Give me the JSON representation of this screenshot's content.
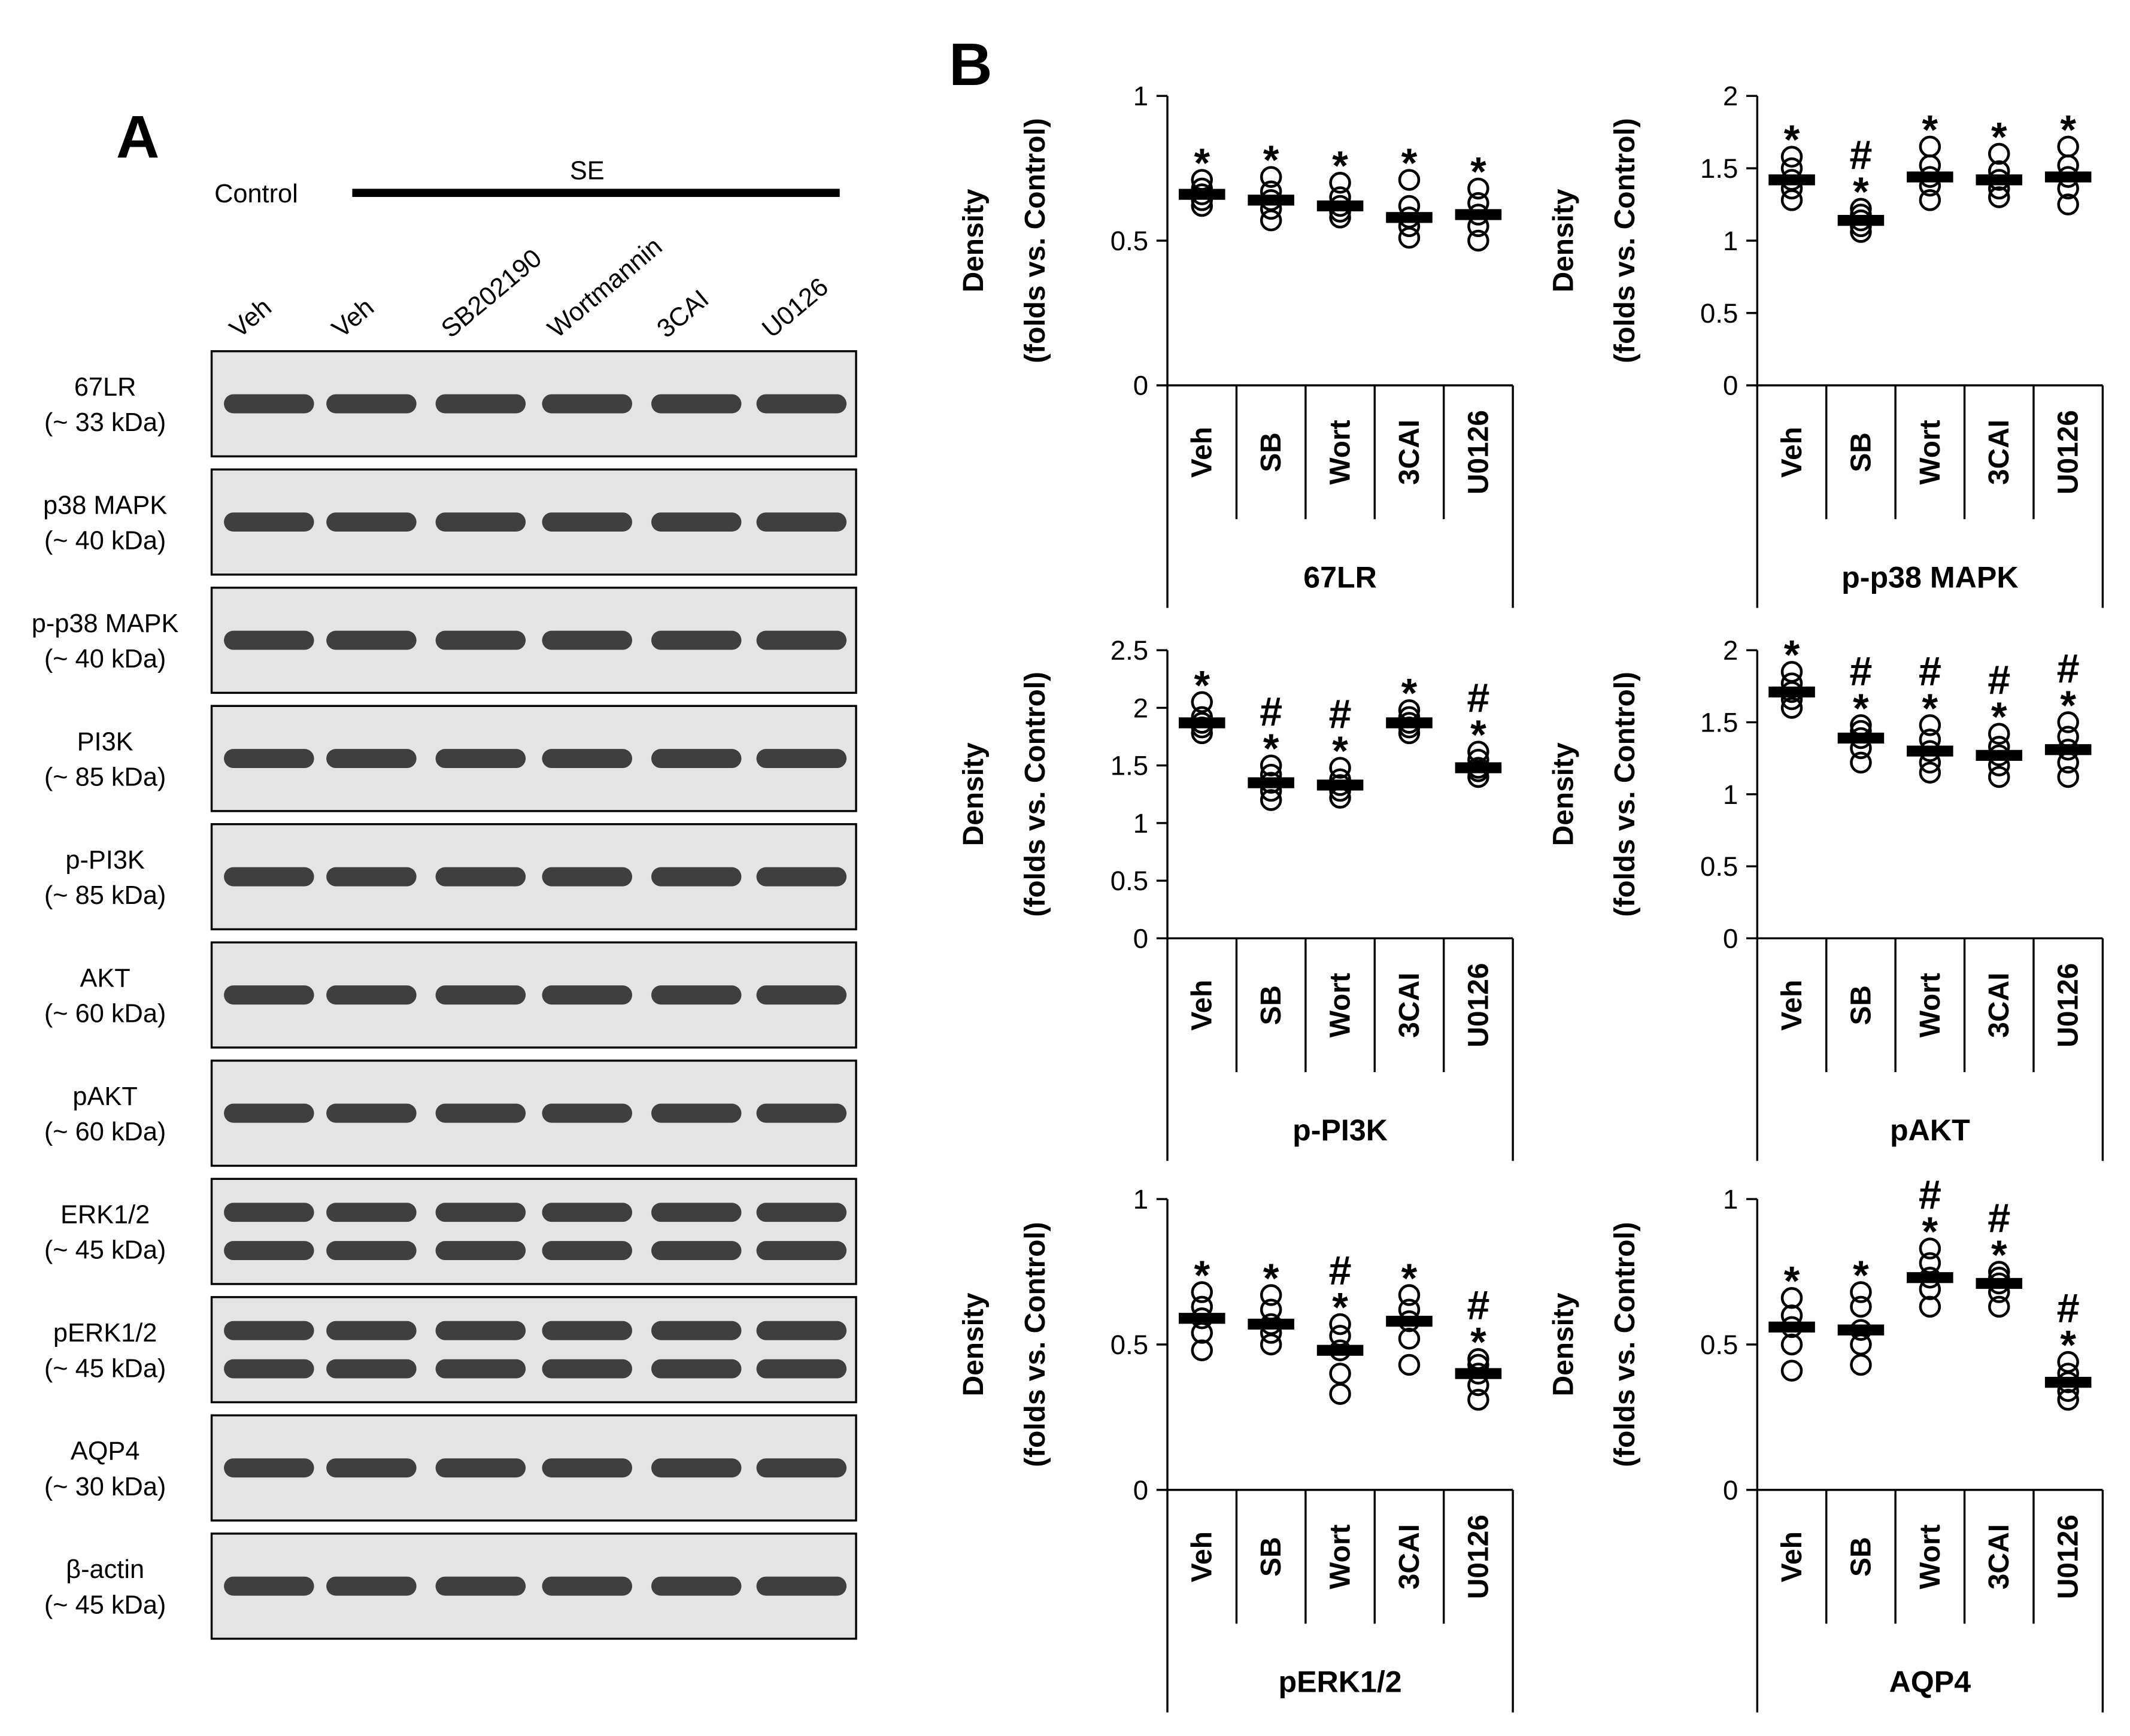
{
  "panel_a": {
    "label": "A",
    "control": "Control",
    "se": "SE",
    "lanes": [
      "Veh",
      "Veh",
      "SB202190",
      "Wortmannin",
      "3CAI",
      "U0126"
    ],
    "rows": [
      {
        "name": "67LR",
        "size": "(~ 33 kDa)"
      },
      {
        "name": "p38 MAPK",
        "size": "(~ 40 kDa)"
      },
      {
        "name": "p-p38 MAPK",
        "size": "(~ 40 kDa)"
      },
      {
        "name": "PI3K",
        "size": "(~ 85 kDa)"
      },
      {
        "name": "p-PI3K",
        "size": "(~ 85 kDa)"
      },
      {
        "name": "AKT",
        "size": "(~ 60 kDa)"
      },
      {
        "name": "pAKT",
        "size": "(~ 60 kDa)"
      },
      {
        "name": "ERK1/2",
        "size": "(~ 45 kDa)"
      },
      {
        "name": "pERK1/2",
        "size": "(~ 45 kDa)"
      },
      {
        "name": "AQP4",
        "size": "(~ 30 kDa)"
      },
      {
        "name": "β-actin",
        "size": "(~ 45 kDa)"
      }
    ]
  },
  "panel_b": {
    "label": "B"
  },
  "chart_data": [
    {
      "type": "dot",
      "title": "67LR",
      "ylabel": "Density",
      "ylabel_sub": "(folds vs. Control)",
      "categories": [
        "Veh",
        "SB",
        "Wort",
        "3CAI",
        "U0126"
      ],
      "values": [
        0.66,
        0.64,
        0.62,
        0.58,
        0.59
      ],
      "points": [
        [
          0.62,
          0.64,
          0.66,
          0.68,
          0.71
        ],
        [
          0.57,
          0.61,
          0.64,
          0.67,
          0.72
        ],
        [
          0.58,
          0.6,
          0.62,
          0.65,
          0.7
        ],
        [
          0.51,
          0.55,
          0.58,
          0.62,
          0.71
        ],
        [
          0.5,
          0.55,
          0.59,
          0.63,
          0.68
        ]
      ],
      "annotations": [
        [
          "*"
        ],
        [
          "*"
        ],
        [
          "*"
        ],
        [
          "*"
        ],
        [
          "*"
        ]
      ],
      "ylim": [
        0,
        1
      ],
      "yticks": [
        0,
        0.5,
        1
      ]
    },
    {
      "type": "dot",
      "title": "p-p38 MAPK",
      "ylabel": "Density",
      "ylabel_sub": "(folds vs. Control)",
      "categories": [
        "Veh",
        "SB",
        "Wort",
        "3CAI",
        "U0126"
      ],
      "values": [
        1.42,
        1.14,
        1.44,
        1.42,
        1.44
      ],
      "points": [
        [
          1.28,
          1.36,
          1.42,
          1.5,
          1.58
        ],
        [
          1.06,
          1.1,
          1.14,
          1.18,
          1.22
        ],
        [
          1.28,
          1.38,
          1.44,
          1.52,
          1.65
        ],
        [
          1.3,
          1.36,
          1.42,
          1.48,
          1.6
        ],
        [
          1.25,
          1.36,
          1.44,
          1.52,
          1.65
        ]
      ],
      "annotations": [
        [
          "*"
        ],
        [
          "#",
          "*"
        ],
        [
          "*"
        ],
        [
          "*"
        ],
        [
          "*"
        ]
      ],
      "ylim": [
        0,
        2
      ],
      "yticks": [
        0,
        0.5,
        1,
        1.5,
        2
      ]
    },
    {
      "type": "dot",
      "title": "p-PI3K",
      "ylabel": "Density",
      "ylabel_sub": "(folds vs. Control)",
      "categories": [
        "Veh",
        "SB",
        "Wort",
        "3CAI",
        "U0126"
      ],
      "values": [
        1.87,
        1.35,
        1.33,
        1.87,
        1.48
      ],
      "points": [
        [
          1.78,
          1.83,
          1.87,
          1.92,
          2.05
        ],
        [
          1.2,
          1.28,
          1.35,
          1.42,
          1.5
        ],
        [
          1.22,
          1.28,
          1.33,
          1.38,
          1.48
        ],
        [
          1.78,
          1.83,
          1.87,
          1.92,
          1.98
        ],
        [
          1.4,
          1.45,
          1.48,
          1.55,
          1.62
        ]
      ],
      "annotations": [
        [
          "*"
        ],
        [
          "#",
          "*"
        ],
        [
          "#",
          "*"
        ],
        [
          "*"
        ],
        [
          "#",
          "*"
        ]
      ],
      "ylim": [
        0,
        2.5
      ],
      "yticks": [
        0,
        0.5,
        1,
        1.5,
        2,
        2.5
      ]
    },
    {
      "type": "dot",
      "title": "pAKT",
      "ylabel": "Density",
      "ylabel_sub": "(folds vs. Control)",
      "categories": [
        "Veh",
        "SB",
        "Wort",
        "3CAI",
        "U0126"
      ],
      "values": [
        1.71,
        1.39,
        1.3,
        1.27,
        1.31
      ],
      "points": [
        [
          1.6,
          1.66,
          1.71,
          1.77,
          1.85
        ],
        [
          1.22,
          1.32,
          1.39,
          1.44,
          1.48
        ],
        [
          1.15,
          1.22,
          1.3,
          1.38,
          1.48
        ],
        [
          1.12,
          1.2,
          1.27,
          1.33,
          1.42
        ],
        [
          1.12,
          1.22,
          1.31,
          1.4,
          1.5
        ]
      ],
      "annotations": [
        [
          "*"
        ],
        [
          "#",
          "*"
        ],
        [
          "#",
          "*"
        ],
        [
          "#",
          "*"
        ],
        [
          "#",
          "*"
        ]
      ],
      "ylim": [
        0,
        2
      ],
      "yticks": [
        0,
        0.5,
        1,
        1.5,
        2
      ]
    },
    {
      "type": "dot",
      "title": "pERK1/2",
      "ylabel": "Density",
      "ylabel_sub": "(folds vs. Control)",
      "categories": [
        "Veh",
        "SB",
        "Wort",
        "3CAI",
        "U0126"
      ],
      "values": [
        0.59,
        0.57,
        0.48,
        0.58,
        0.4
      ],
      "points": [
        [
          0.48,
          0.54,
          0.59,
          0.63,
          0.68
        ],
        [
          0.5,
          0.54,
          0.57,
          0.62,
          0.67
        ],
        [
          0.33,
          0.4,
          0.48,
          0.53,
          0.57
        ],
        [
          0.43,
          0.52,
          0.58,
          0.62,
          0.67
        ],
        [
          0.31,
          0.36,
          0.4,
          0.43,
          0.45
        ]
      ],
      "annotations": [
        [
          "*"
        ],
        [
          "*"
        ],
        [
          "#",
          "*"
        ],
        [
          "*"
        ],
        [
          "#",
          "*"
        ]
      ],
      "ylim": [
        0,
        1
      ],
      "yticks": [
        0,
        0.5,
        1
      ]
    },
    {
      "type": "dot",
      "title": "AQP4",
      "ylabel": "Density",
      "ylabel_sub": "(folds vs. Control)",
      "categories": [
        "Veh",
        "SB",
        "Wort",
        "3CAI",
        "U0126"
      ],
      "values": [
        0.56,
        0.55,
        0.73,
        0.71,
        0.37
      ],
      "points": [
        [
          0.41,
          0.5,
          0.56,
          0.6,
          0.66
        ],
        [
          0.43,
          0.5,
          0.55,
          0.63,
          0.68
        ],
        [
          0.63,
          0.69,
          0.73,
          0.78,
          0.83
        ],
        [
          0.63,
          0.68,
          0.71,
          0.73,
          0.75
        ],
        [
          0.31,
          0.34,
          0.37,
          0.4,
          0.44
        ]
      ],
      "annotations": [
        [
          "*"
        ],
        [
          "*"
        ],
        [
          "#",
          "*"
        ],
        [
          "#",
          "*"
        ],
        [
          "#",
          "*"
        ]
      ],
      "ylim": [
        0,
        1
      ],
      "yticks": [
        0,
        0.5,
        1
      ]
    }
  ]
}
